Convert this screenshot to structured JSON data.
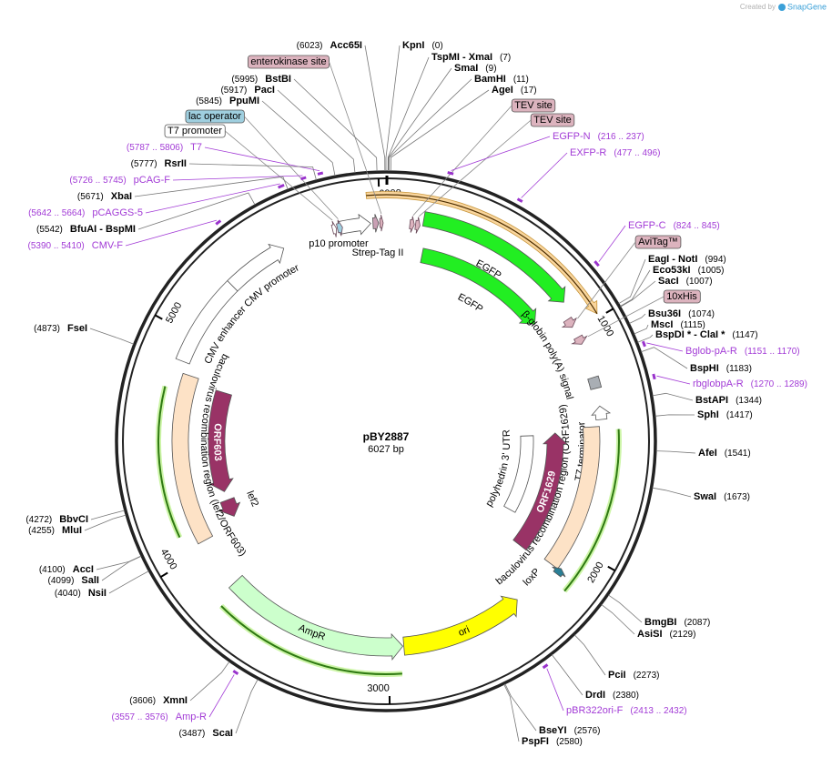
{
  "credit": {
    "text": "Created by",
    "brand": "SnapGene"
  },
  "map": {
    "name": "pBY2887",
    "length": 6027,
    "length_label": "6027 bp",
    "ticks": [
      1000,
      2000,
      3000,
      4000,
      5000,
      6000
    ],
    "sites": [
      {
        "name": "KpnI",
        "position": 0,
        "position_label": "(0)"
      },
      {
        "name": "TspMI - XmaI",
        "position": 7,
        "position_label": "(7)"
      },
      {
        "name": "SmaI",
        "position": 9,
        "position_label": "(9)"
      },
      {
        "name": "BamHI",
        "position": 11,
        "position_label": "(11)"
      },
      {
        "name": "AgeI",
        "position": 17,
        "position_label": "(17)"
      },
      {
        "name": "EagI - NotI",
        "position": 994,
        "position_label": "(994)"
      },
      {
        "name": "Eco53kI",
        "position": 1005,
        "position_label": "(1005)"
      },
      {
        "name": "SacI",
        "position": 1007,
        "position_label": "(1007)"
      },
      {
        "name": "Bsu36I",
        "position": 1074,
        "position_label": "(1074)"
      },
      {
        "name": "MscI",
        "position": 1115,
        "position_label": "(1115)"
      },
      {
        "name": "BspDI * - ClaI *",
        "position": 1147,
        "position_label": "(1147)"
      },
      {
        "name": "BspHI",
        "position": 1183,
        "position_label": "(1183)"
      },
      {
        "name": "BstAPI",
        "position": 1344,
        "position_label": "(1344)"
      },
      {
        "name": "SphI",
        "position": 1417,
        "position_label": "(1417)"
      },
      {
        "name": "AfeI",
        "position": 1541,
        "position_label": "(1541)"
      },
      {
        "name": "SwaI",
        "position": 1673,
        "position_label": "(1673)"
      },
      {
        "name": "BmgBI",
        "position": 2087,
        "position_label": "(2087)"
      },
      {
        "name": "AsiSI",
        "position": 2129,
        "position_label": "(2129)"
      },
      {
        "name": "PciI",
        "position": 2273,
        "position_label": "(2273)"
      },
      {
        "name": "DrdI",
        "position": 2380,
        "position_label": "(2380)"
      },
      {
        "name": "BseYI",
        "position": 2576,
        "position_label": "(2576)"
      },
      {
        "name": "PspFI",
        "position": 2580,
        "position_label": "(2580)"
      },
      {
        "name": "ScaI",
        "position": 3487,
        "position_label": "(3487)"
      },
      {
        "name": "XmnI",
        "position": 3606,
        "position_label": "(3606)"
      },
      {
        "name": "NsiI",
        "position": 4040,
        "position_label": "(4040)"
      },
      {
        "name": "SalI",
        "position": 4099,
        "position_label": "(4099)"
      },
      {
        "name": "AccI",
        "position": 4100,
        "position_label": "(4100)"
      },
      {
        "name": "MluI",
        "position": 4255,
        "position_label": "(4255)"
      },
      {
        "name": "BbvCI",
        "position": 4272,
        "position_label": "(4272)"
      },
      {
        "name": "FseI",
        "position": 4873,
        "position_label": "(4873)"
      },
      {
        "name": "BfuAI - BspMI",
        "position": 5542,
        "position_label": "(5542)"
      },
      {
        "name": "XbaI",
        "position": 5671,
        "position_label": "(5671)"
      },
      {
        "name": "RsrII",
        "position": 5777,
        "position_label": "(5777)"
      },
      {
        "name": "PpuMI",
        "position": 5845,
        "position_label": "(5845)"
      },
      {
        "name": "PacI",
        "position": 5917,
        "position_label": "(5917)"
      },
      {
        "name": "BstBI",
        "position": 5995,
        "position_label": "(5995)"
      },
      {
        "name": "Acc65I",
        "position": 6023,
        "position_label": "(6023)"
      }
    ],
    "primers": [
      {
        "name": "EGFP-N",
        "start": 216,
        "end": 237,
        "range_label": "(216 .. 237)"
      },
      {
        "name": "EXFP-R",
        "start": 477,
        "end": 496,
        "range_label": "(477 .. 496)"
      },
      {
        "name": "EGFP-C",
        "start": 824,
        "end": 845,
        "range_label": "(824 .. 845)"
      },
      {
        "name": "Bglob-pA-R",
        "start": 1151,
        "end": 1170,
        "range_label": "(1151 .. 1170)"
      },
      {
        "name": "rbglobpA-R",
        "start": 1270,
        "end": 1289,
        "range_label": "(1270 .. 1289)"
      },
      {
        "name": "pBR322ori-F",
        "start": 2413,
        "end": 2432,
        "range_label": "(2413 .. 2432)"
      },
      {
        "name": "Amp-R",
        "start": 3557,
        "end": 3576,
        "range_label": "(3557 .. 3576)"
      },
      {
        "name": "CMV-F",
        "start": 5390,
        "end": 5410,
        "range_label": "(5390 .. 5410)"
      },
      {
        "name": "pCAGGS-5",
        "start": 5642,
        "end": 5664,
        "range_label": "(5642 .. 5664)"
      },
      {
        "name": "pCAG-F",
        "start": 5726,
        "end": 5745,
        "range_label": "(5726 .. 5745)"
      },
      {
        "name": "T7",
        "start": 5787,
        "end": 5806,
        "range_label": "(5787 .. 5806)"
      }
    ],
    "tags": [
      {
        "name": "TEV site",
        "start": 105,
        "end": 125,
        "color": "#dcb3be"
      },
      {
        "name": "TEV site",
        "start": 130,
        "end": 150,
        "color": "#dcb3be"
      },
      {
        "name": "AviTag™",
        "start": 940,
        "end": 980,
        "color": "#dcb3be"
      },
      {
        "name": "10xHis",
        "start": 1030,
        "end": 1065,
        "color": "#dcb3be"
      },
      {
        "name": "T7 promoter",
        "start": 5790,
        "end": 5808,
        "color": "#ffffff"
      },
      {
        "name": "lac operator",
        "start": 5812,
        "end": 5835,
        "color": "#9fcfdf"
      },
      {
        "name": "enterokinase site",
        "start": 6000,
        "end": 6015,
        "color": "#dcb3be"
      }
    ],
    "features": [
      {
        "start": 5950,
        "end": 985,
        "direction": 1,
        "color": "#f9d59c"
      },
      {
        "name": "EGFP",
        "start": 162,
        "end": 870,
        "direction": 1,
        "color": "#22ee22"
      },
      {
        "name": "EGFP",
        "start": 183,
        "end": 867,
        "direction": 1,
        "color": "#22ee22"
      },
      {
        "name": "β-globin poly(A) signal",
        "start": 1220,
        "end": 1270,
        "direction": 0,
        "color": "#a9aeb4"
      },
      {
        "name": "T7 terminator",
        "start": 1350,
        "end": 1410,
        "direction": -1,
        "color": "#ffffff"
      },
      {
        "name": "baculovirus recombination region (ORF1629)",
        "start": 1440,
        "end": 2120,
        "direction": 0,
        "color": "#fde2c6"
      },
      {
        "name": "loxP",
        "start": 2110,
        "end": 2140,
        "direction": -1,
        "color": "#2a7f96"
      },
      {
        "name": "ORF1629",
        "start": 1460,
        "end": 2140,
        "direction": -1,
        "color": "#993366"
      },
      {
        "name": "polyhedrin 3' UTR",
        "start": 1470,
        "end": 1990,
        "direction": 0,
        "color": "#ffffff"
      },
      {
        "name": "ori",
        "start": 2350,
        "end": 2930,
        "direction": -1,
        "color": "#ffff00"
      },
      {
        "name": "AmpR",
        "start": 2935,
        "end": 3800,
        "direction": -1,
        "color": "#ccffcc"
      },
      {
        "name": "lef2",
        "start": 4080,
        "end": 4180,
        "direction": -1,
        "color": "#993366"
      },
      {
        "name": "ORF603",
        "start": 4230,
        "end": 4800,
        "direction": -1,
        "color": "#993366"
      },
      {
        "name": "baculovirus recombination region (lef2/ORF603)",
        "start": 4040,
        "end": 4830,
        "direction": 0,
        "color": "#fde2c6"
      },
      {
        "name": "CMV enhancer",
        "start": 4880,
        "end": 5280,
        "direction": 0,
        "color": "#ffffff"
      },
      {
        "name": "CMV promoter",
        "start": 5280,
        "end": 5560,
        "direction": 1,
        "color": "#ffffff"
      },
      {
        "name": "p10 promoter",
        "start": 5820,
        "end": 5960,
        "direction": 1,
        "color": "#ffffff"
      },
      {
        "name": "Strep-Tag II",
        "start": 5970,
        "end": 5995,
        "direction": 1,
        "color": "#c9a0b4"
      }
    ]
  }
}
